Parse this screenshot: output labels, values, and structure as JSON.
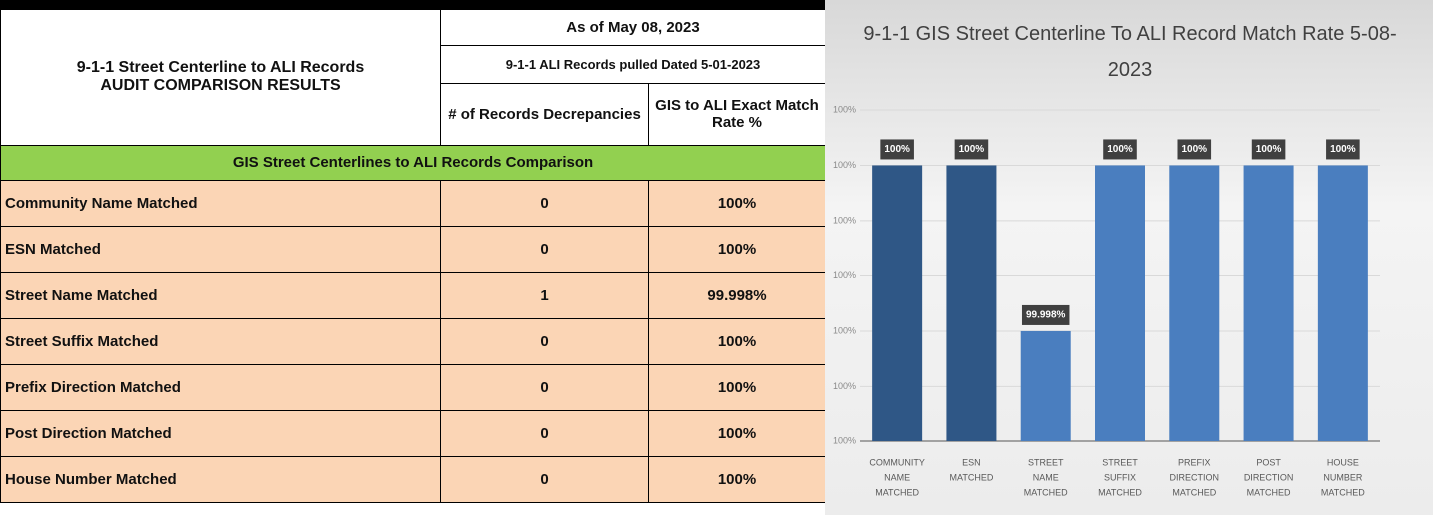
{
  "table": {
    "title_lines": [
      "9-1-1 Street Centerline to ALI Records",
      "AUDIT COMPARISON RESULTS"
    ],
    "as_of": "As of May 08, 2023",
    "pulled": "9-1-1 ALI Records pulled Dated 5-01-2023",
    "columns": [
      "# of Records Decrepancies",
      "GIS to ALI Exact Match Rate %"
    ],
    "section": "GIS Street Centerlines to ALI Records Comparison",
    "rows": [
      [
        "Community Name Matched",
        0,
        "100%"
      ],
      [
        "ESN Matched",
        0,
        "100%"
      ],
      [
        "Street Name Matched",
        1,
        "99.998%"
      ],
      [
        "Street Suffix Matched",
        0,
        "100%"
      ],
      [
        "Prefix Direction Matched",
        0,
        "100%"
      ],
      [
        "Post Direction Matched",
        0,
        "100%"
      ],
      [
        "House Number Matched",
        0,
        "100%"
      ]
    ]
  },
  "chart_data": {
    "type": "bar",
    "title": "9-1-1 GIS Street Centerline To ALI Record Match Rate 5-08-2023",
    "categories": [
      [
        "COMMUNITY",
        "NAME",
        "MATCHED"
      ],
      [
        "ESN",
        "MATCHED"
      ],
      [
        "STREET",
        "NAME",
        "MATCHED"
      ],
      [
        "STREET",
        "SUFFIX",
        "MATCHED"
      ],
      [
        "PREFIX",
        "DIRECTION",
        "MATCHED"
      ],
      [
        "POST",
        "DIRECTION",
        "MATCHED"
      ],
      [
        "HOUSE",
        "NUMBER",
        "MATCHED"
      ]
    ],
    "values": [
      100,
      100,
      99.998,
      100,
      100,
      100,
      100
    ],
    "value_labels": [
      "100%",
      "100%",
      "99.998%",
      "100%",
      "100%",
      "100%",
      "100%"
    ],
    "colors": [
      "#2f5786",
      "#2f5786",
      "#4a7ebf",
      "#4a7ebf",
      "#4a7ebf",
      "#4a7ebf",
      "#4a7ebf"
    ],
    "ylim": [
      99.99667,
      100.00067
    ],
    "yticks": [
      {
        "value": 99.99667,
        "label": "100%"
      },
      {
        "value": 99.99733,
        "label": "100%"
      },
      {
        "value": 99.998,
        "label": "100%"
      },
      {
        "value": 99.99867,
        "label": "100%"
      },
      {
        "value": 99.99933,
        "label": "100%"
      },
      {
        "value": 100,
        "label": "100%"
      },
      {
        "value": 100.00067,
        "label": "100%"
      }
    ],
    "grid": true
  }
}
